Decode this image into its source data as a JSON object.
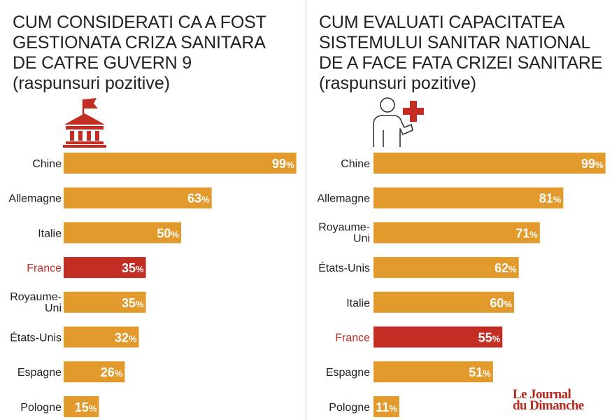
{
  "charts": [
    {
      "title_lines": [
        "CUM CONSIDERATI CA A FOST",
        "GESTIONATA CRIZA SANITARA",
        "DE CATRE GUVERN 9"
      ],
      "subtitle": "(raspunsuri pozitive)",
      "icon": "government-building-flag-icon"
    },
    {
      "title_lines": [
        "CUM EVALUATI CAPACITATEA",
        "SISTEMULUI SANITAR NATIONAL",
        "DE A FACE FATA CRIZEI SANITARE"
      ],
      "subtitle": "(raspunsuri pozitive)",
      "icon": "person-medical-cross-icon"
    }
  ],
  "chart_data": [
    {
      "type": "bar",
      "orientation": "horizontal",
      "title": "CUM CONSIDERATI CA A FOST GESTIONATA CRIZA SANITARA DE CATRE GUVERN 9",
      "subtitle": "(raspunsuri pozitive)",
      "categories": [
        "Chine",
        "Allemagne",
        "Italie",
        "France",
        "Royaume-Uni",
        "États-Unis",
        "Espagne",
        "Pologne"
      ],
      "category_lines": [
        [
          "Chine"
        ],
        [
          "Allemagne"
        ],
        [
          "Italie"
        ],
        [
          "France"
        ],
        [
          "Royaume-",
          "Uni"
        ],
        [
          "États-Unis"
        ],
        [
          "Espagne"
        ],
        [
          "Pologne"
        ]
      ],
      "values": [
        99,
        63,
        50,
        35,
        35,
        32,
        26,
        15
      ],
      "unit": "%",
      "highlight": "France",
      "xlim": [
        0,
        100
      ]
    },
    {
      "type": "bar",
      "orientation": "horizontal",
      "title": "CUM EVALUATI CAPACITATEA SISTEMULUI SANITAR NATIONAL DE A FACE FATA CRIZEI SANITARE",
      "subtitle": "(raspunsuri pozitive)",
      "categories": [
        "Chine",
        "Allemagne",
        "Royaume-Uni",
        "États-Unis",
        "Italie",
        "France",
        "Espagne",
        "Pologne"
      ],
      "category_lines": [
        [
          "Chine"
        ],
        [
          "Allemagne"
        ],
        [
          "Royaume-",
          "Uni"
        ],
        [
          "États-Unis"
        ],
        [
          "Italie"
        ],
        [
          "France"
        ],
        [
          "Espagne"
        ],
        [
          "Pologne"
        ]
      ],
      "values": [
        99,
        81,
        71,
        62,
        60,
        55,
        51,
        11
      ],
      "unit": "%",
      "highlight": "France",
      "xlim": [
        0,
        100
      ]
    }
  ],
  "colors": {
    "bar": "#e39a2c",
    "highlight_bar": "#c22d24",
    "highlight_label": "#c22d24",
    "label": "#222222",
    "value_text": "#ffffff",
    "icon_red": "#c22d24"
  },
  "logo": {
    "line1": "Le Journal",
    "line2": "du Dimanche"
  }
}
